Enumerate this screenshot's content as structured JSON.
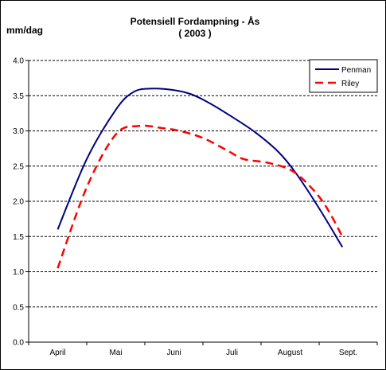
{
  "chart_data": {
    "type": "line",
    "title": "Potensiell Fordampning - Ås",
    "subtitle": "( 2003 )",
    "ylabel": "mm/dag",
    "xlabel": "",
    "categories": [
      "April",
      "Mai",
      "Juni",
      "Juli",
      "August",
      "Sept."
    ],
    "ylim": [
      0,
      4.0
    ],
    "yticks": [
      "0.0",
      "0.5",
      "1.0",
      "1.5",
      "2.0",
      "2.5",
      "3.0",
      "3.5",
      "4.0"
    ],
    "grid": "horizontal dashed",
    "legend_position": "top-right",
    "series": [
      {
        "name": "Penman",
        "color": "#000080",
        "style": "solid",
        "x": [
          0.0,
          0.5,
          1.0,
          1.3,
          1.6,
          2.0,
          2.3,
          2.6,
          3.0,
          3.4,
          3.8,
          4.1,
          4.5,
          4.9
        ],
        "values": [
          1.6,
          2.6,
          3.3,
          3.55,
          3.6,
          3.58,
          3.52,
          3.4,
          3.2,
          2.98,
          2.7,
          2.4,
          1.9,
          1.35
        ]
      },
      {
        "name": "Riley",
        "color": "#ff0000",
        "style": "dashed",
        "x": [
          0.0,
          0.5,
          1.0,
          1.4,
          1.8,
          2.1,
          2.5,
          2.9,
          3.2,
          3.6,
          4.0,
          4.3,
          4.6,
          4.9
        ],
        "values": [
          1.05,
          2.2,
          2.95,
          3.07,
          3.04,
          3.0,
          2.9,
          2.73,
          2.6,
          2.55,
          2.45,
          2.25,
          1.95,
          1.5
        ]
      }
    ]
  }
}
